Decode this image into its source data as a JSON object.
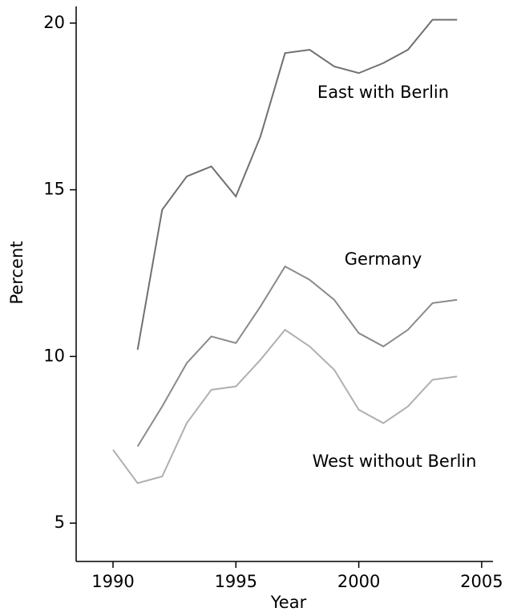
{
  "chart_data": {
    "type": "line",
    "x": [
      1990,
      1991,
      1992,
      1993,
      1994,
      1995,
      1996,
      1997,
      1998,
      1999,
      2000,
      2001,
      2002,
      2003,
      2004
    ],
    "series": [
      {
        "name": "East with Berlin",
        "color": "#707070",
        "values": [
          null,
          10.2,
          14.4,
          15.4,
          15.7,
          14.8,
          16.6,
          19.1,
          19.2,
          18.7,
          18.5,
          18.8,
          19.2,
          20.1,
          20.1
        ]
      },
      {
        "name": "Germany",
        "color": "#8a8a8a",
        "values": [
          null,
          7.3,
          8.5,
          9.8,
          10.6,
          10.4,
          11.5,
          12.7,
          12.3,
          11.7,
          10.7,
          10.3,
          10.8,
          11.6,
          11.7
        ]
      },
      {
        "name": "West without Berlin",
        "color": "#b0b0b0",
        "values": [
          7.2,
          6.2,
          6.4,
          8.0,
          9.0,
          9.1,
          9.9,
          10.8,
          10.3,
          9.6,
          8.4,
          8.0,
          8.5,
          9.3,
          9.4
        ]
      }
    ],
    "x_label": "Year",
    "y_label": "Percent",
    "xlim": [
      1988.5,
      2005.46
    ],
    "xticks": [
      1990,
      1995,
      2000,
      2005
    ],
    "ylim": [
      3.85,
      20.5
    ],
    "yticks": [
      5,
      10,
      15,
      20
    ]
  }
}
